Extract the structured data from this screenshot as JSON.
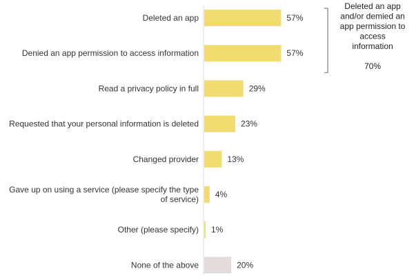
{
  "chart_data": {
    "type": "bar",
    "orientation": "horizontal",
    "categories": [
      [
        "Deleted an app"
      ],
      [
        "Denied an app permission to access information"
      ],
      [
        "Read a privacy policy in full"
      ],
      [
        "Requested that your personal information is deleted"
      ],
      [
        "Changed provider"
      ],
      [
        "Gave up on using a service (please specify the type",
        "of service)"
      ],
      [
        "Other (please specify)"
      ],
      [
        "None of the above"
      ]
    ],
    "values": [
      57,
      57,
      29,
      23,
      13,
      4,
      1,
      20
    ],
    "value_labels": [
      "57%",
      "57%",
      "29%",
      "23%",
      "13%",
      "4%",
      "1%",
      "20%"
    ],
    "bar_colors": [
      "#f2dc72",
      "#f2dc72",
      "#f2dc72",
      "#f2dc72",
      "#f2dc72",
      "#f2dc72",
      "#f2dc72",
      "#e3dcdd"
    ],
    "xlim": [
      0,
      100
    ],
    "title": "",
    "xlabel": "",
    "ylabel": "",
    "grid": false,
    "annotation": {
      "lines": [
        "Deleted an app",
        "and/or demied an",
        "app permission to",
        "access",
        "information"
      ],
      "value": "70%",
      "spans_categories": [
        0,
        1
      ]
    }
  }
}
